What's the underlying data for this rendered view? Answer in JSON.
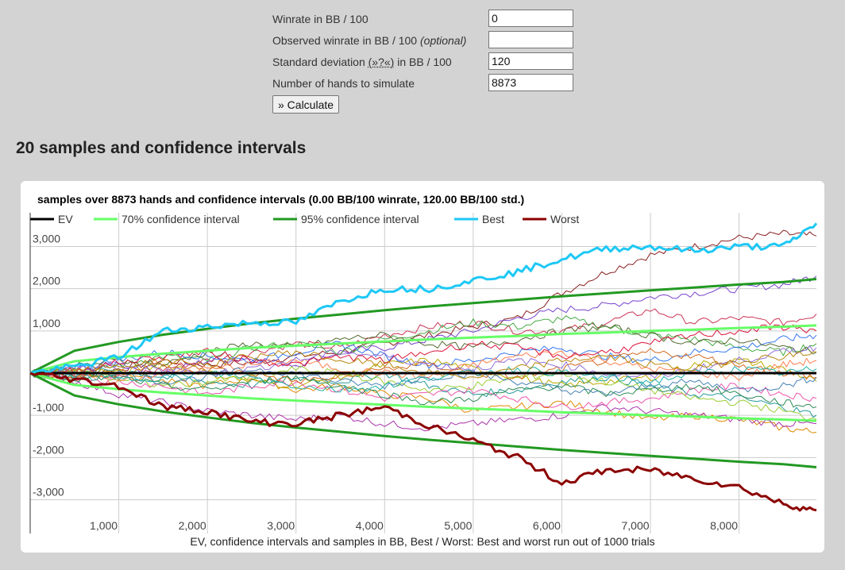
{
  "form": {
    "winrate_label": "Winrate in BB / 100",
    "winrate_value": "0",
    "observed_label": "Observed winrate in BB / 100 ",
    "observed_optional": "(optional)",
    "observed_value": "",
    "std_label_pre": "Standard deviation ",
    "std_help": "(»?«)",
    "std_label_post": " in BB / 100",
    "std_value": "120",
    "hands_label": "Number of hands to simulate",
    "hands_value": "8873",
    "calculate_label": "» Calculate"
  },
  "section_title": "20 samples and confidence intervals",
  "chart_data": {
    "type": "line",
    "title": "samples over 8873 hands and confidence intervals (0.00 BB/100 winrate, 120.00 BB/100 std.)",
    "xlabel": "EV, confidence intervals and samples in BB, Best / Worst: Best and worst run out of 1000 trials",
    "ylabel": "",
    "xlim": [
      0,
      8873
    ],
    "ylim": [
      -3800,
      3800
    ],
    "x_ticks": [
      "1,000",
      "2,000",
      "3,000",
      "4,000",
      "5,000",
      "6,000",
      "7,000",
      "8,000"
    ],
    "y_ticks": [
      "3,000",
      "2,000",
      "1,000",
      "-1,000",
      "-2,000",
      "-3,000"
    ],
    "grid": true,
    "legend_position": "top",
    "legend": [
      "EV",
      "70% confidence interval",
      "95% confidence interval",
      "Best",
      "Worst"
    ],
    "x": [
      0,
      500,
      1000,
      1500,
      2000,
      2500,
      3000,
      3500,
      4000,
      4500,
      5000,
      5500,
      6000,
      6500,
      7000,
      7500,
      8000,
      8500,
      8873
    ],
    "series": [
      {
        "name": "EV",
        "color": "#000000",
        "values": [
          0,
          0,
          0,
          0,
          0,
          0,
          0,
          0,
          0,
          0,
          0,
          0,
          0,
          0,
          0,
          0,
          0,
          0,
          0
        ]
      },
      {
        "name": "70% confidence interval",
        "color": "#66ff66",
        "values": [
          0,
          280,
          380,
          460,
          530,
          600,
          650,
          700,
          750,
          800,
          840,
          880,
          930,
          960,
          1000,
          1030,
          1070,
          1100,
          1130
        ]
      },
      {
        "name": "70% confidence interval",
        "color": "#66ff66",
        "values": [
          0,
          -280,
          -380,
          -460,
          -530,
          -600,
          -650,
          -700,
          -750,
          -800,
          -840,
          -880,
          -930,
          -960,
          -1000,
          -1030,
          -1070,
          -1100,
          -1130
        ]
      },
      {
        "name": "95% confidence interval",
        "color": "#229922",
        "values": [
          0,
          530,
          740,
          910,
          1050,
          1180,
          1290,
          1390,
          1490,
          1580,
          1660,
          1740,
          1820,
          1890,
          1960,
          2030,
          2100,
          2160,
          2230
        ]
      },
      {
        "name": "95% confidence interval",
        "color": "#229922",
        "values": [
          0,
          -530,
          -740,
          -910,
          -1050,
          -1180,
          -1290,
          -1390,
          -1490,
          -1580,
          -1660,
          -1740,
          -1820,
          -1890,
          -1960,
          -2030,
          -2100,
          -2160,
          -2230
        ]
      },
      {
        "name": "Best",
        "color": "#1ec8f5",
        "values": [
          0,
          150,
          380,
          1000,
          1100,
          1200,
          1200,
          1700,
          2000,
          2000,
          2200,
          2400,
          2700,
          2950,
          3000,
          2900,
          3000,
          3000,
          3550
        ]
      },
      {
        "name": "Worst",
        "color": "#8b0000",
        "values": [
          0,
          -150,
          -300,
          -800,
          -900,
          -1150,
          -1200,
          -1000,
          -800,
          -1250,
          -1600,
          -2000,
          -2600,
          -2300,
          -2300,
          -2500,
          -2700,
          -3100,
          -3250
        ]
      },
      {
        "name": "",
        "color": "#8b2020",
        "values": [
          0,
          -50,
          100,
          300,
          200,
          250,
          400,
          500,
          700,
          900,
          1100,
          1300,
          1900,
          2400,
          2800,
          3000,
          3200,
          3300,
          3250
        ]
      },
      {
        "name": "",
        "color": "#7744cc",
        "values": [
          0,
          100,
          200,
          0,
          300,
          350,
          200,
          500,
          600,
          800,
          1000,
          1300,
          1500,
          1600,
          1800,
          1900,
          2000,
          2100,
          2300
        ]
      },
      {
        "name": "",
        "color": "#cc3355",
        "values": [
          0,
          50,
          -100,
          100,
          300,
          500,
          700,
          600,
          900,
          1100,
          1200,
          1000,
          1000,
          1200,
          1500,
          1200,
          1300,
          1200,
          1400
        ]
      },
      {
        "name": "",
        "color": "#44aa44",
        "values": [
          0,
          -100,
          200,
          400,
          300,
          600,
          700,
          500,
          800,
          1000,
          1200,
          1100,
          1300,
          1100,
          900,
          800,
          600,
          500,
          700
        ]
      },
      {
        "name": "",
        "color": "#dd8800",
        "values": [
          0,
          50,
          100,
          -200,
          -300,
          -100,
          -400,
          -300,
          -500,
          -600,
          -900,
          -800,
          -700,
          -900,
          -1100,
          -1000,
          -1100,
          -1300,
          -1400
        ]
      },
      {
        "name": "",
        "color": "#aa33aa",
        "values": [
          0,
          -200,
          -500,
          -700,
          -900,
          -1000,
          -1100,
          -1000,
          -1200,
          -1300,
          -1200,
          -1100,
          -1000,
          -800,
          -900,
          -1000,
          -1100,
          -1200,
          -1200
        ]
      },
      {
        "name": "",
        "color": "#3377ee",
        "values": [
          0,
          100,
          300,
          500,
          400,
          300,
          500,
          700,
          400,
          200,
          300,
          500,
          600,
          400,
          300,
          500,
          600,
          800,
          900
        ]
      },
      {
        "name": "",
        "color": "#229999",
        "values": [
          0,
          -50,
          100,
          -100,
          -200,
          -300,
          -100,
          -200,
          0,
          -300,
          -500,
          -400,
          -200,
          -100,
          -300,
          -500,
          -600,
          -800,
          -1000
        ]
      },
      {
        "name": "",
        "color": "#bbaa00",
        "values": [
          0,
          100,
          0,
          200,
          0,
          -200,
          -300,
          -100,
          200,
          300,
          100,
          -100,
          -300,
          -200,
          -100,
          200,
          300,
          100,
          -200
        ]
      },
      {
        "name": "",
        "color": "#ee55aa",
        "values": [
          0,
          -100,
          -200,
          -300,
          -500,
          -300,
          -200,
          -400,
          -600,
          -500,
          -400,
          -600,
          -800,
          -700,
          -600,
          -400,
          -300,
          -500,
          -600
        ]
      },
      {
        "name": "",
        "color": "#556b2f",
        "values": [
          0,
          150,
          300,
          200,
          500,
          700,
          600,
          800,
          900,
          700,
          600,
          800,
          1000,
          1100,
          900,
          700,
          800,
          600,
          500
        ]
      },
      {
        "name": "",
        "color": "#9acd32",
        "values": [
          0,
          50,
          -150,
          -300,
          -200,
          -100,
          100,
          0,
          -200,
          -400,
          -300,
          -100,
          0,
          -200,
          -400,
          -600,
          -700,
          -900,
          -1100
        ]
      },
      {
        "name": "",
        "color": "#ff7f50",
        "values": [
          0,
          -80,
          -200,
          0,
          100,
          200,
          300,
          100,
          0,
          -100,
          200,
          400,
          500,
          300,
          100,
          0,
          -100,
          200,
          300
        ]
      },
      {
        "name": "",
        "color": "#4682b4",
        "values": [
          0,
          80,
          0,
          -200,
          -100,
          100,
          0,
          -200,
          -300,
          -100,
          0,
          -200,
          -400,
          -500,
          -300,
          -200,
          -400,
          -300,
          -100
        ]
      },
      {
        "name": "",
        "color": "#d2691e",
        "values": [
          0,
          -100,
          0,
          200,
          100,
          0,
          -200,
          -100,
          100,
          200,
          0,
          -100,
          100,
          300,
          500,
          400,
          200,
          0,
          -100
        ]
      },
      {
        "name": "",
        "color": "#9370db",
        "values": [
          0,
          100,
          200,
          100,
          0,
          100,
          300,
          500,
          400,
          200,
          100,
          300,
          200,
          0,
          -100,
          100,
          300,
          500,
          600
        ]
      },
      {
        "name": "",
        "color": "#2e8b57",
        "values": [
          0,
          -150,
          -100,
          -300,
          -400,
          -200,
          -100,
          -300,
          -500,
          -700,
          -600,
          -400,
          -300,
          -500,
          -400,
          -300,
          -500,
          -700,
          -800
        ]
      },
      {
        "name": "",
        "color": "#dc143c",
        "values": [
          0,
          50,
          250,
          400,
          500,
          300,
          200,
          400,
          300,
          500,
          700,
          600,
          400,
          500,
          700,
          900,
          1000,
          1100,
          1000
        ]
      },
      {
        "name": "",
        "color": "#20b2aa",
        "values": [
          0,
          -50,
          -150,
          -100,
          0,
          -100,
          -300,
          -400,
          -300,
          -100,
          0,
          100,
          0,
          -100,
          -200,
          0,
          100,
          0,
          100
        ]
      },
      {
        "name": "",
        "color": "#b8860b",
        "values": [
          0,
          100,
          150,
          300,
          200,
          400,
          500,
          300,
          200,
          0,
          -100,
          100,
          300,
          400,
          200,
          100,
          300,
          400,
          500
        ]
      }
    ]
  }
}
